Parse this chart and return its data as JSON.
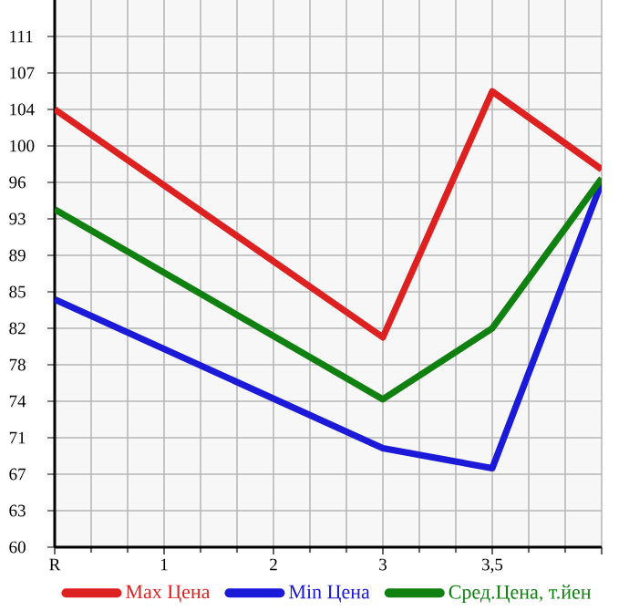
{
  "chart_data": {
    "type": "line",
    "categories": [
      "R",
      "1",
      "2",
      "3",
      "3,5",
      null
    ],
    "series": [
      {
        "name": "Max Цена",
        "color": "#dd2020",
        "values": [
          103.6,
          null,
          null,
          80.8,
          105.4,
          97.6
        ]
      },
      {
        "name": "Min Цена",
        "color": "#1a1ad8",
        "values": [
          84.6,
          null,
          null,
          69.7,
          67.7,
          96.3
        ]
      },
      {
        "name": "Сред.Цена, т.йен",
        "color": "#108010",
        "values": [
          93.6,
          null,
          null,
          74.6,
          81.7,
          96.7
        ]
      }
    ],
    "ylim": [
      59.8,
      114.55
    ],
    "yticks": [
      {
        "value": 59.8,
        "label": "60"
      },
      {
        "value": 63.45,
        "label": "63"
      },
      {
        "value": 67.1,
        "label": "67"
      },
      {
        "value": 70.75,
        "label": "71"
      },
      {
        "value": 74.4,
        "label": "74"
      },
      {
        "value": 78.05,
        "label": "78"
      },
      {
        "value": 81.7,
        "label": "82"
      },
      {
        "value": 85.35,
        "label": "85"
      },
      {
        "value": 89.0,
        "label": "89"
      },
      {
        "value": 92.65,
        "label": "93"
      },
      {
        "value": 96.3,
        "label": "96"
      },
      {
        "value": 99.95,
        "label": "100"
      },
      {
        "value": 103.6,
        "label": "104"
      },
      {
        "value": 107.25,
        "label": "107"
      },
      {
        "value": 110.9,
        "label": "111"
      }
    ],
    "grid": true,
    "legend": "bottom",
    "marker": "none",
    "line_style": "solid"
  }
}
